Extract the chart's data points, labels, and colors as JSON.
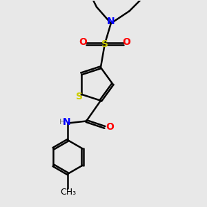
{
  "background_color": "#e8e8e8",
  "colors": {
    "S": "#cccc00",
    "O": "#ff0000",
    "N": "#0000ff",
    "C": "#000000",
    "bond": "#000000"
  },
  "figsize": [
    3.0,
    3.0
  ],
  "dpi": 100
}
